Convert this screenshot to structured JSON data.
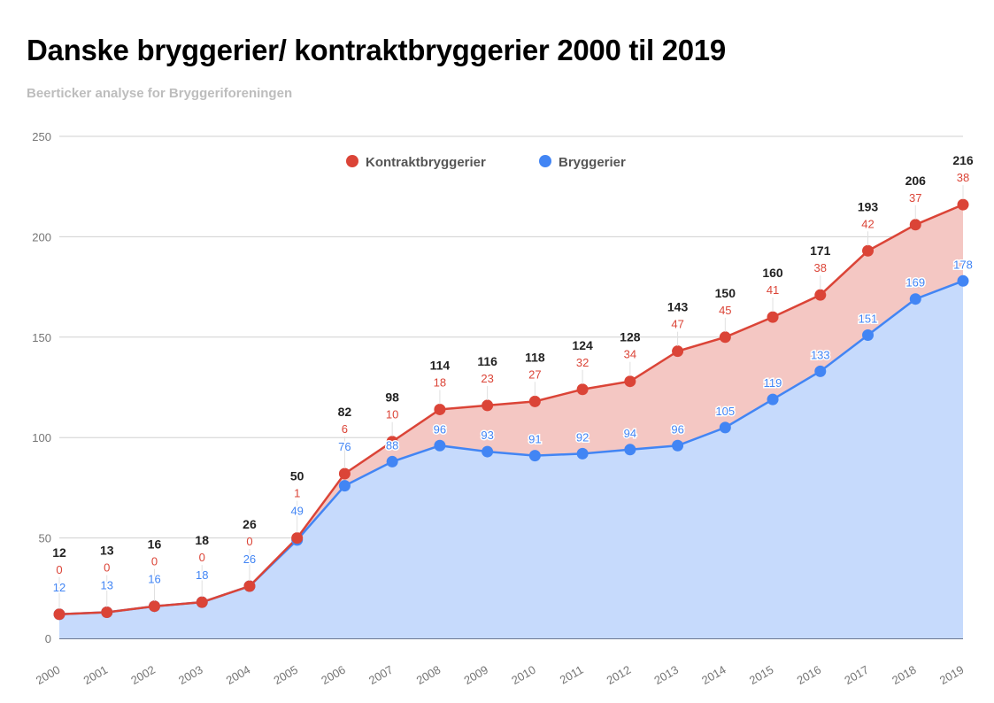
{
  "chart_data": {
    "type": "area",
    "stacked": true,
    "title": "Danske bryggerier/ kontraktbryggerier 2000 til 2019",
    "subtitle": "Beerticker analyse for Bryggeriforeningen",
    "xlabel": "",
    "ylabel": "",
    "ylim": [
      0,
      250
    ],
    "yticks": [
      0,
      50,
      100,
      150,
      200,
      250
    ],
    "grid": true,
    "legend_position": "top-center",
    "categories": [
      "2000",
      "2001",
      "2002",
      "2003",
      "2004",
      "2005",
      "2006",
      "2007",
      "2008",
      "2009",
      "2010",
      "2011",
      "2012",
      "2013",
      "2014",
      "2015",
      "2016",
      "2017",
      "2018",
      "2019"
    ],
    "series": [
      {
        "name": "Bryggerier",
        "color": "#4285f4",
        "fill": "#c6dafc",
        "values": [
          12,
          13,
          16,
          18,
          26,
          49,
          76,
          88,
          96,
          93,
          91,
          92,
          94,
          96,
          105,
          119,
          133,
          151,
          169,
          178
        ]
      },
      {
        "name": "Kontraktbryggerier",
        "color": "#db4437",
        "fill": "#f4c7c3",
        "values": [
          0,
          0,
          0,
          0,
          0,
          1,
          6,
          10,
          18,
          23,
          27,
          32,
          34,
          47,
          45,
          41,
          38,
          42,
          37,
          38
        ]
      }
    ],
    "totals": [
      12,
      13,
      16,
      18,
      26,
      50,
      82,
      98,
      114,
      116,
      118,
      124,
      128,
      143,
      150,
      160,
      171,
      193,
      206,
      216
    ],
    "legend": [
      {
        "label": "Kontraktbryggerier",
        "color": "#db4437"
      },
      {
        "label": "Bryggerier",
        "color": "#4285f4"
      }
    ]
  }
}
